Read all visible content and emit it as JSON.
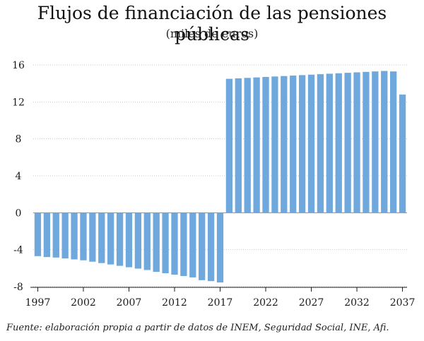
{
  "chart_data": {
    "type": "bar",
    "title": "Flujos de financiación de las pensiones públicas",
    "subtitle": "(miles de euros)",
    "xlabel": "",
    "ylabel": "",
    "categories": [
      "1997",
      "1998",
      "1999",
      "2000",
      "2001",
      "2002",
      "2003",
      "2004",
      "2005",
      "2006",
      "2007",
      "2008",
      "2009",
      "2010",
      "2011",
      "2012",
      "2013",
      "2014",
      "2015",
      "2016",
      "2017",
      "2018",
      "2019",
      "2020",
      "2021",
      "2022",
      "2023",
      "2024",
      "2025",
      "2026",
      "2027",
      "2028",
      "2029",
      "2030",
      "2031",
      "2032",
      "2033",
      "2034",
      "2035",
      "2036",
      "2037"
    ],
    "x_tick_labels": [
      "1997",
      "2002",
      "2007",
      "2012",
      "2017",
      "2022",
      "2027",
      "2032",
      "2037"
    ],
    "y_tick_labels": [
      "-8",
      "-4",
      "0",
      "4",
      "8",
      "12",
      "16"
    ],
    "ylim": [
      -8,
      16
    ],
    "values": [
      -4.7,
      -4.8,
      -4.85,
      -4.95,
      -5.05,
      -5.15,
      -5.3,
      -5.45,
      -5.6,
      -5.75,
      -5.9,
      -6.05,
      -6.2,
      -6.4,
      -6.55,
      -6.7,
      -6.85,
      -7.0,
      -7.3,
      -7.4,
      -7.55,
      14.5,
      14.55,
      14.6,
      14.65,
      14.7,
      14.75,
      14.8,
      14.85,
      14.9,
      14.95,
      15.0,
      15.05,
      15.1,
      15.15,
      15.2,
      15.25,
      15.3,
      15.35,
      15.3,
      12.8
    ],
    "bar_color": "#6fa8dc",
    "grid": true,
    "legend": "none"
  },
  "footer": "Fuente: elaboración propia a partir de datos de INEM, Seguridad Social, INE, Afi."
}
